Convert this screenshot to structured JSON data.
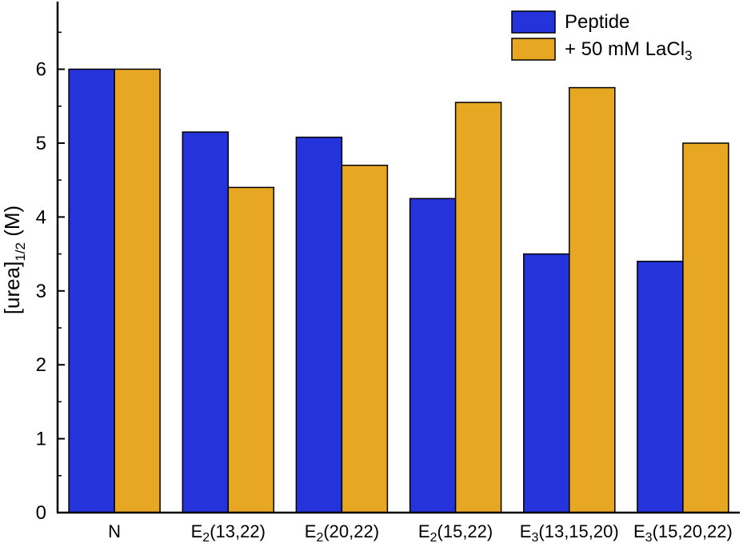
{
  "chart_data": {
    "type": "bar",
    "title": "",
    "categories": [
      "N",
      "E2(13,22)",
      "E2(20,22)",
      "E2(15,22)",
      "E3(13,15,20)",
      "E3(15,20,22)"
    ],
    "categories_parts": [
      {
        "pre": "N",
        "sub": "",
        "post": ""
      },
      {
        "pre": "E",
        "sub": "2",
        "post": "(13,22)"
      },
      {
        "pre": "E",
        "sub": "2",
        "post": "(20,22)"
      },
      {
        "pre": "E",
        "sub": "2",
        "post": "(15,22)"
      },
      {
        "pre": "E",
        "sub": "3",
        "post": "(13,15,20)"
      },
      {
        "pre": "E",
        "sub": "3",
        "post": "(15,20,22)"
      }
    ],
    "series": [
      {
        "name": "Peptide",
        "name_parts": {
          "pre": "Peptide",
          "sub": "",
          "post": ""
        },
        "color": "#2533DB",
        "values": [
          6.0,
          5.15,
          5.08,
          4.25,
          3.5,
          3.4
        ]
      },
      {
        "name": "+ 50 mM LaCl3",
        "name_parts": {
          "pre": "+ 50 mM LaCl",
          "sub": "3",
          "post": ""
        },
        "color": "#E8A722",
        "values": [
          6.0,
          4.4,
          4.7,
          5.55,
          5.75,
          5.0
        ]
      }
    ],
    "xlabel": "",
    "ylabel": "[urea]1/2 (M)",
    "ylabel_parts": {
      "pre": "[urea]",
      "sub": "1/2",
      "post": " (M)"
    },
    "ylim": [
      0,
      6.85
    ],
    "yticks": [
      0,
      1,
      2,
      3,
      4,
      5,
      6
    ],
    "minor_tick_step": 0.5,
    "grid": false,
    "legend_position": "top-right",
    "bar_edge_color": "#000000",
    "axis_color": "#000000",
    "background": "#FFFFFF"
  }
}
